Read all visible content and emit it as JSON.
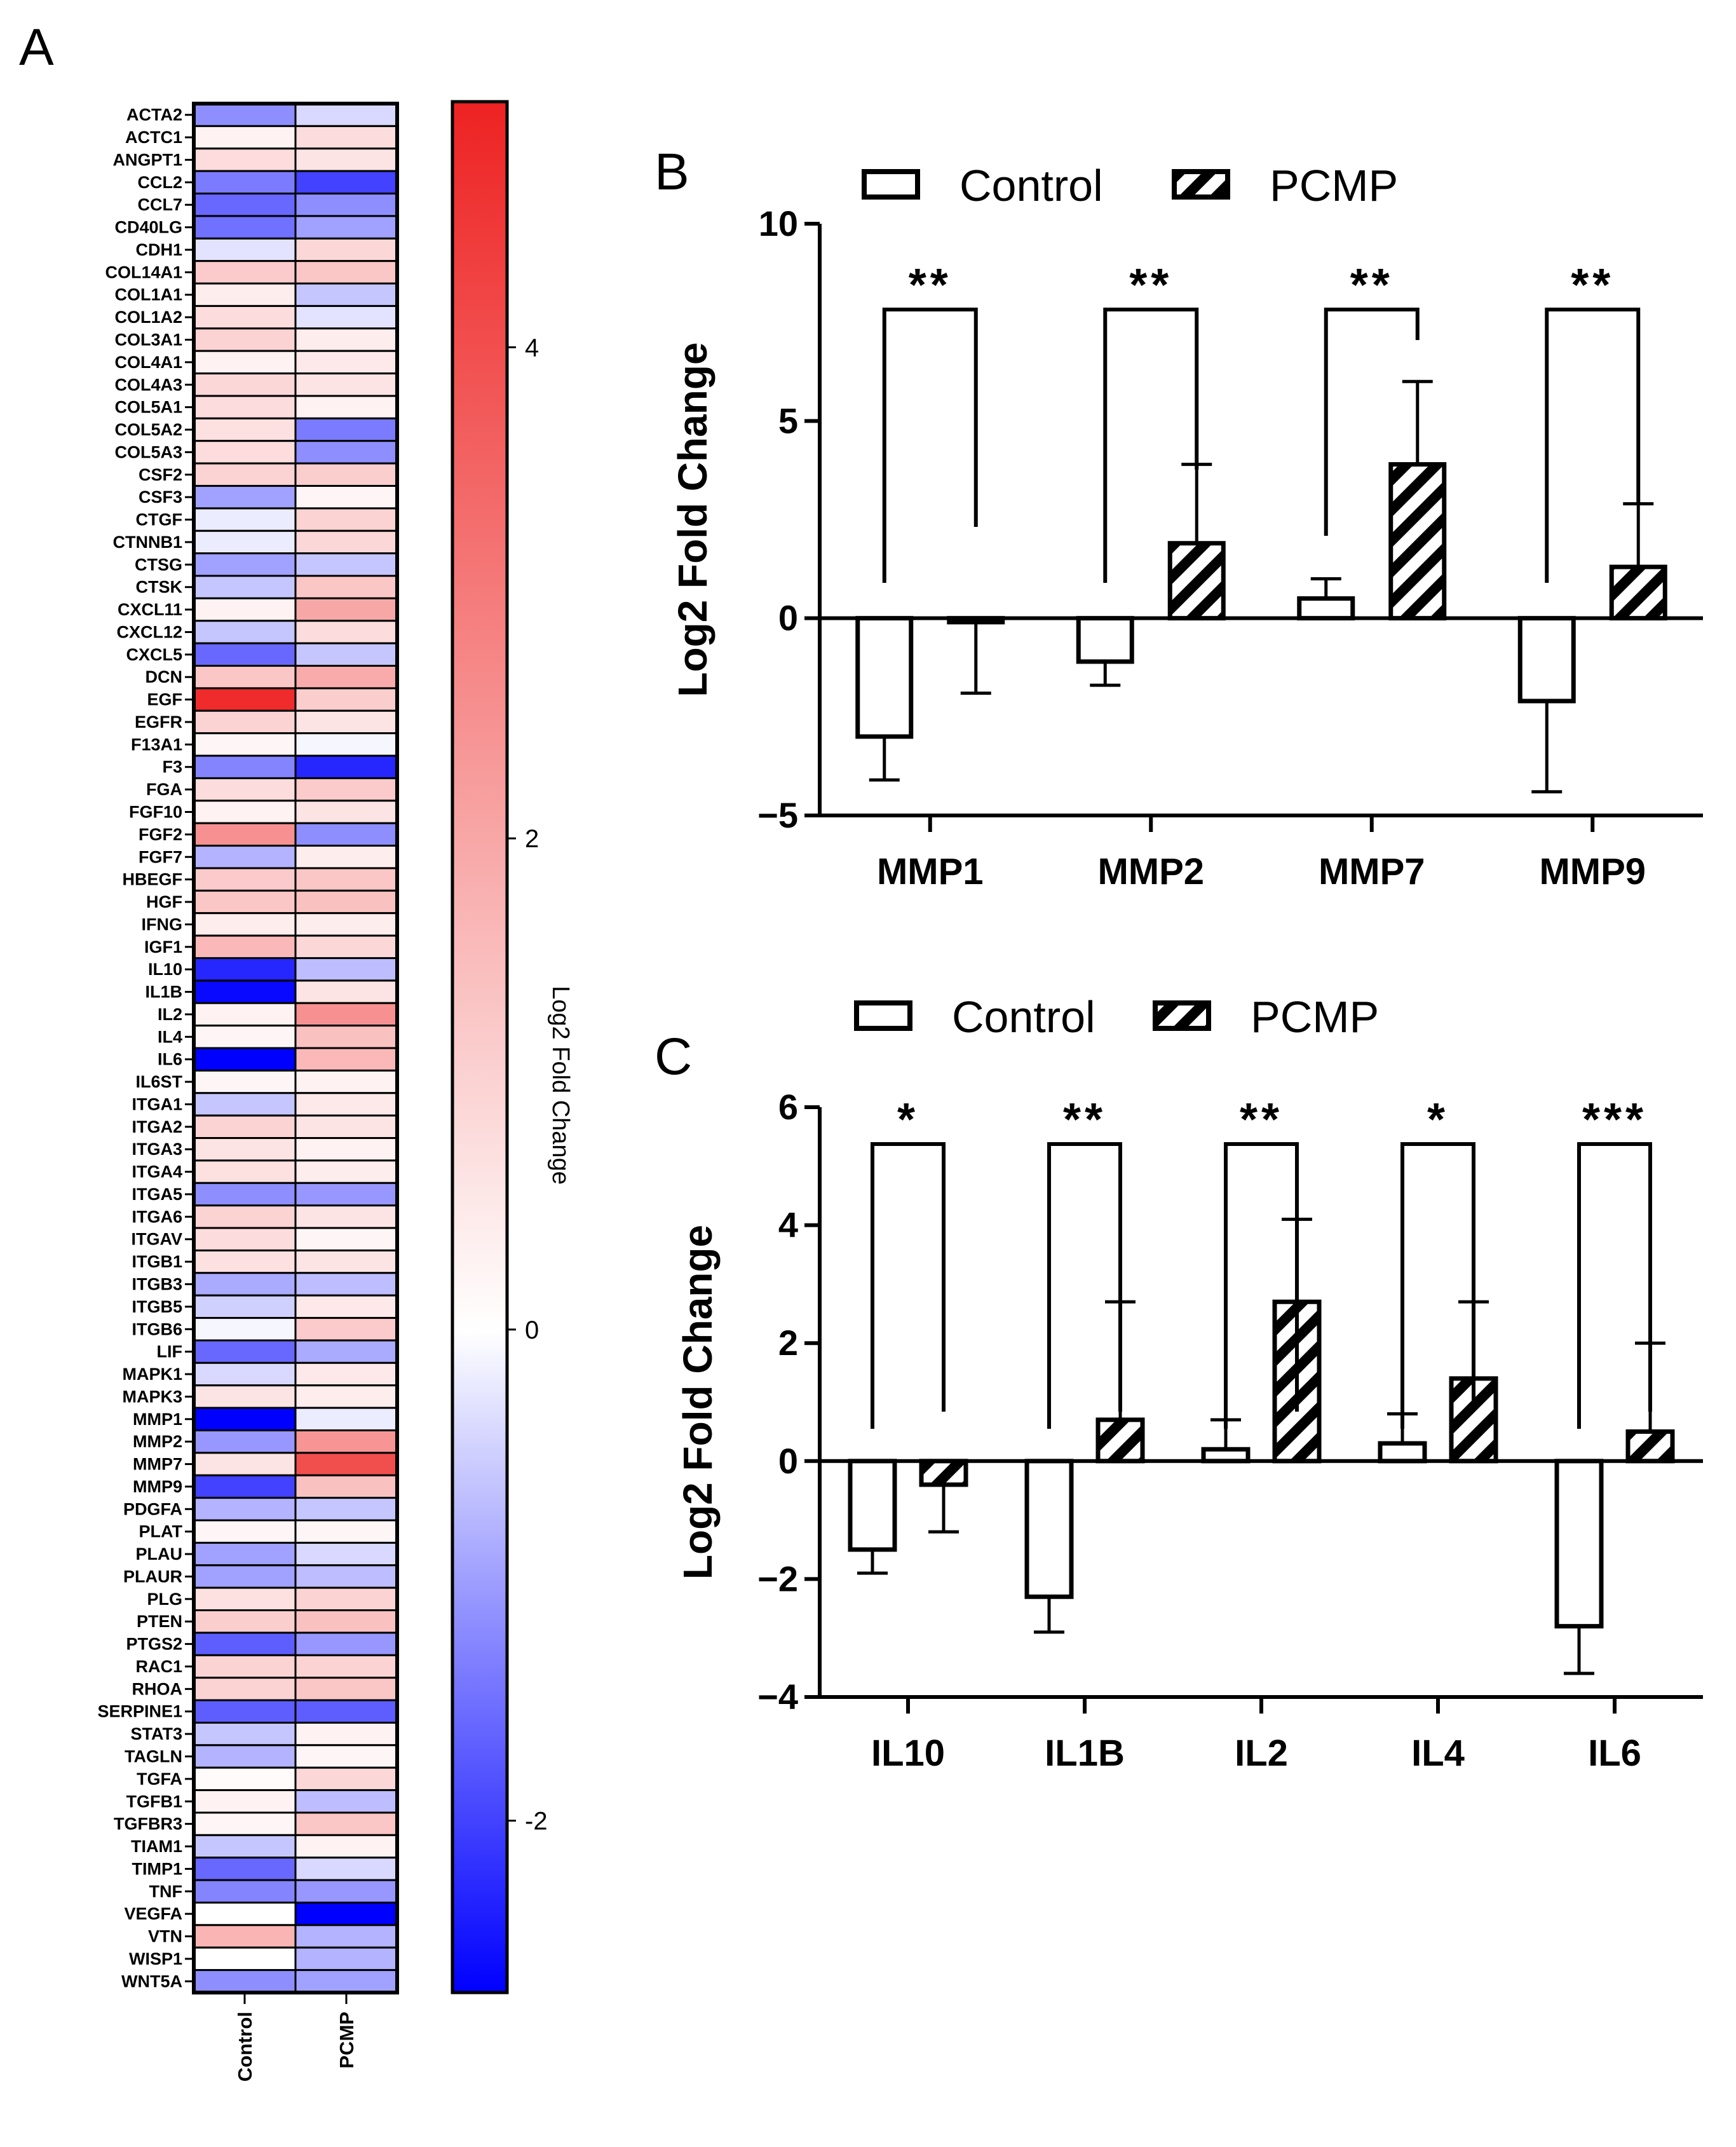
{
  "panels": {
    "a": "A",
    "b": "B",
    "c": "C"
  },
  "colors": {
    "negative": "#0000ff",
    "neutral": "#ffffff",
    "positive": "#ee2222",
    "ink": "#000000"
  },
  "chart_data": [
    {
      "type": "heatmap",
      "panel": "A",
      "columns": [
        "Control",
        "PCMP"
      ],
      "rows": [
        "ACTA2",
        "ACTC1",
        "ANGPT1",
        "CCL2",
        "CCL7",
        "CD40LG",
        "CDH1",
        "COL14A1",
        "COL1A1",
        "COL1A2",
        "COL3A1",
        "COL4A1",
        "COL4A3",
        "COL5A1",
        "COL5A2",
        "COL5A3",
        "CSF2",
        "CSF3",
        "CTGF",
        "CTNNB1",
        "CTSG",
        "CTSK",
        "CXCL11",
        "CXCL12",
        "CXCL5",
        "DCN",
        "EGF",
        "EGFR",
        "F13A1",
        "F3",
        "FGA",
        "FGF10",
        "FGF2",
        "FGF7",
        "HBEGF",
        "HGF",
        "IFNG",
        "IGF1",
        "IL10",
        "IL1B",
        "IL2",
        "IL4",
        "IL6",
        "IL6ST",
        "ITGA1",
        "ITGA2",
        "ITGA3",
        "ITGA4",
        "ITGA5",
        "ITGA6",
        "ITGAV",
        "ITGB1",
        "ITGB3",
        "ITGB5",
        "ITGB6",
        "LIF",
        "MAPK1",
        "MAPK3",
        "MMP1",
        "MMP2",
        "MMP7",
        "MMP9",
        "PDGFA",
        "PLAT",
        "PLAU",
        "PLAUR",
        "PLG",
        "PTEN",
        "PTGS2",
        "RAC1",
        "RHOA",
        "SERPINE1",
        "STAT3",
        "TAGLN",
        "TGFA",
        "TGFB1",
        "TGFBR3",
        "TIAM1",
        "TIMP1",
        "TNF",
        "VEGFA",
        "VTN",
        "WISP1",
        "WNT5A"
      ],
      "values": [
        [
          -1.2,
          -0.4
        ],
        [
          0.3,
          0.8
        ],
        [
          0.8,
          0.6
        ],
        [
          -1.4,
          -2.0
        ],
        [
          -1.6,
          -1.2
        ],
        [
          -1.5,
          -1.0
        ],
        [
          -0.3,
          0.9
        ],
        [
          1.2,
          1.3
        ],
        [
          0.4,
          -0.6
        ],
        [
          0.8,
          -0.3
        ],
        [
          1.0,
          0.4
        ],
        [
          0.3,
          0.5
        ],
        [
          0.9,
          0.6
        ],
        [
          0.8,
          0.3
        ],
        [
          0.7,
          -1.4
        ],
        [
          0.8,
          -1.2
        ],
        [
          1.0,
          1.1
        ],
        [
          -1.0,
          0.2
        ],
        [
          -0.2,
          1.0
        ],
        [
          -0.2,
          0.9
        ],
        [
          -1.0,
          -0.6
        ],
        [
          -0.6,
          1.3
        ],
        [
          0.3,
          2.0
        ],
        [
          -0.6,
          0.8
        ],
        [
          -1.6,
          -0.6
        ],
        [
          1.3,
          1.9
        ],
        [
          4.8,
          1.1
        ],
        [
          1.0,
          0.6
        ],
        [
          0.2,
          -0.1
        ],
        [
          -1.3,
          -2.3
        ],
        [
          0.8,
          1.2
        ],
        [
          0.3,
          0.6
        ],
        [
          2.5,
          -1.2
        ],
        [
          -0.8,
          0.4
        ],
        [
          1.2,
          1.3
        ],
        [
          1.3,
          1.4
        ],
        [
          0.4,
          0.4
        ],
        [
          1.6,
          0.9
        ],
        [
          -2.3,
          -0.7
        ],
        [
          -2.6,
          0.6
        ],
        [
          0.3,
          2.5
        ],
        [
          0.2,
          1.4
        ],
        [
          -2.7,
          1.6
        ],
        [
          0.2,
          0.3
        ],
        [
          -0.6,
          0.5
        ],
        [
          1.0,
          0.6
        ],
        [
          0.6,
          0.3
        ],
        [
          0.7,
          0.4
        ],
        [
          -1.2,
          -1.1
        ],
        [
          1.0,
          0.6
        ],
        [
          0.8,
          0.2
        ],
        [
          0.7,
          0.6
        ],
        [
          -0.9,
          -0.7
        ],
        [
          -0.5,
          0.5
        ],
        [
          -0.1,
          1.2
        ],
        [
          -1.6,
          -0.9
        ],
        [
          -0.4,
          0.5
        ],
        [
          0.6,
          0.4
        ],
        [
          -3.0,
          -0.2
        ],
        [
          -1.1,
          2.4
        ],
        [
          0.6,
          4.0
        ],
        [
          -2.0,
          1.4
        ],
        [
          -0.8,
          -0.6
        ],
        [
          0.2,
          0.2
        ],
        [
          -1.0,
          -0.4
        ],
        [
          -1.0,
          -0.7
        ],
        [
          0.7,
          1.0
        ],
        [
          1.1,
          1.4
        ],
        [
          -1.7,
          -1.1
        ],
        [
          1.0,
          1.0
        ],
        [
          1.0,
          1.3
        ],
        [
          -1.7,
          -1.7
        ],
        [
          -0.6,
          0.3
        ],
        [
          -0.8,
          0.2
        ],
        [
          0.1,
          0.9
        ],
        [
          0.3,
          -0.7
        ],
        [
          0.2,
          1.3
        ],
        [
          -0.6,
          0.3
        ],
        [
          -1.6,
          -0.4
        ],
        [
          -1.3,
          -1.1
        ],
        [
          0.0,
          -2.9
        ],
        [
          1.7,
          -0.8
        ],
        [
          0.0,
          -0.8
        ],
        [
          -1.2,
          -1.0
        ]
      ],
      "colorbar": {
        "min": -2.7,
        "max": 5.0,
        "ticks": [
          4,
          2,
          0,
          -2
        ],
        "tick_labels": [
          "4",
          "2",
          "0",
          "-2"
        ],
        "label": "Log2 Fold Change"
      }
    },
    {
      "type": "bar",
      "panel": "B",
      "categories": [
        "MMP1",
        "MMP2",
        "MMP7",
        "MMP9"
      ],
      "series": [
        {
          "name": "Control",
          "pattern": "open",
          "values": [
            -3.0,
            -1.1,
            0.5,
            -2.1
          ],
          "errors": [
            1.1,
            0.6,
            0.5,
            2.3
          ]
        },
        {
          "name": "PCMP",
          "pattern": "hatched",
          "values": [
            -0.1,
            1.9,
            3.9,
            1.3
          ],
          "errors": [
            1.8,
            2.0,
            2.1,
            1.6
          ]
        }
      ],
      "significance": [
        "**",
        "**",
        "**",
        "**"
      ],
      "ylabel": "Log2 Fold Change",
      "ylim": [
        -5,
        10
      ],
      "yticks": [
        10,
        5,
        0,
        -5
      ],
      "ytick_labels": [
        "10",
        "5",
        "0",
        "−5"
      ],
      "legend": [
        "Control",
        "PCMP"
      ],
      "legend_position": "top"
    },
    {
      "type": "bar",
      "panel": "C",
      "categories": [
        "IL10",
        "IL1B",
        "IL2",
        "IL4",
        "IL6"
      ],
      "series": [
        {
          "name": "Control",
          "pattern": "open",
          "values": [
            -1.5,
            -2.3,
            0.2,
            0.3,
            -2.8
          ],
          "errors": [
            0.4,
            0.6,
            0.5,
            0.5,
            0.8
          ]
        },
        {
          "name": "PCMP",
          "pattern": "hatched",
          "values": [
            -0.4,
            0.7,
            2.7,
            1.4,
            0.5
          ],
          "errors": [
            0.8,
            2.0,
            1.4,
            1.3,
            1.5
          ]
        }
      ],
      "significance": [
        "*",
        "**",
        "**",
        "*",
        "***"
      ],
      "ylabel": "Log2 Fold Change",
      "ylim": [
        -4,
        6
      ],
      "yticks": [
        6,
        4,
        2,
        0,
        -2,
        -4
      ],
      "ytick_labels": [
        "6",
        "4",
        "2",
        "0",
        "−2",
        "−4"
      ],
      "legend": [
        "Control",
        "PCMP"
      ],
      "legend_position": "top"
    }
  ]
}
